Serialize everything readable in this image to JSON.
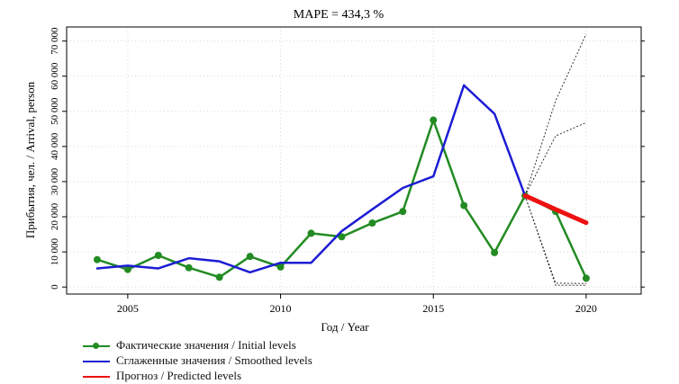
{
  "chart_data": {
    "type": "line",
    "title": "MAPE = 434,3 %",
    "xlabel": "Год / Year",
    "ylabel": "Прибытия, чел. / Arrival, person",
    "xlim": [
      2003.0,
      2021.8
    ],
    "ylim": [
      -2000,
      74000
    ],
    "x_ticks": [
      2005,
      2010,
      2015,
      2020
    ],
    "x_tick_labels": [
      "2005",
      "2010",
      "2015",
      "2020"
    ],
    "y_ticks": [
      0,
      10000,
      20000,
      30000,
      40000,
      50000,
      60000,
      70000
    ],
    "y_tick_labels": [
      "0",
      "10 000",
      "20 000",
      "30 000",
      "40 000",
      "50 000",
      "60 000",
      "70 000"
    ],
    "grid": true,
    "legend_position": "bottom-left",
    "series": [
      {
        "name": "Фактические значения / Initial levels",
        "color": "#228b22",
        "marker": "circle",
        "x": [
          2004,
          2005,
          2006,
          2007,
          2008,
          2009,
          2010,
          2011,
          2012,
          2013,
          2014,
          2015,
          2016,
          2017,
          2018,
          2019,
          2020
        ],
        "y": [
          7800,
          5000,
          9000,
          5500,
          2800,
          8700,
          5700,
          15300,
          14300,
          18200,
          21500,
          47500,
          23200,
          9800,
          26000,
          21500,
          2500
        ]
      },
      {
        "name": "Сглаженные значения / Smoothed levels",
        "color": "#1c1cd4",
        "marker": "none",
        "x": [
          2004,
          2005,
          2006,
          2007,
          2008,
          2009,
          2010,
          2011,
          2012,
          2013,
          2014,
          2015,
          2016,
          2017,
          2018
        ],
        "y": [
          5300,
          6100,
          5300,
          8200,
          7300,
          4200,
          6900,
          6900,
          15900,
          22100,
          28200,
          31500,
          57400,
          49300,
          26000
        ]
      },
      {
        "name": "Прогноз / Predicted levels",
        "color": "#ee1111",
        "marker": "none",
        "x": [
          2018,
          2019,
          2020
        ],
        "y": [
          26000,
          22100,
          18300
        ]
      }
    ],
    "intervals": [
      {
        "x": [
          2018,
          2019,
          2020
        ],
        "y": [
          26000,
          53000,
          72000
        ],
        "style": "dotted"
      },
      {
        "x": [
          2018,
          2019,
          2020
        ],
        "y": [
          26000,
          43000,
          46800
        ],
        "style": "dotted"
      },
      {
        "x": [
          2018,
          2019,
          2020
        ],
        "y": [
          26000,
          1100,
          1000
        ],
        "style": "dotted"
      },
      {
        "x": [
          2018,
          2019,
          2020
        ],
        "y": [
          26000,
          500,
          500
        ],
        "style": "dotted"
      }
    ]
  },
  "legend": {
    "items": [
      {
        "label": "Фактические значения / Initial levels",
        "color": "#228b22",
        "marker": "circle"
      },
      {
        "label": "Сглаженные значения / Smoothed levels",
        "color": "#1c1cd4",
        "marker": "none"
      },
      {
        "label": "Прогноз / Predicted levels",
        "color": "#ee1111",
        "marker": "none"
      }
    ]
  }
}
